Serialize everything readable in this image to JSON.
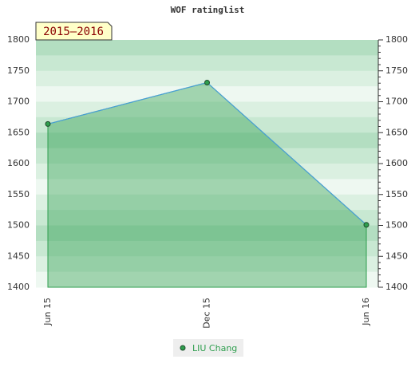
{
  "chart_data": {
    "type": "area",
    "title": "WOF ratinglist",
    "annotation": "2015–2016",
    "categories": [
      "Jun 15",
      "Dec 15",
      "Jun 16"
    ],
    "series": [
      {
        "name": "LIU Chang",
        "color": "#2e9e4e",
        "values": [
          1664,
          1731,
          1501
        ]
      }
    ],
    "ylim": [
      1400,
      1800
    ],
    "yticks": [
      1400,
      1450,
      1500,
      1550,
      1600,
      1650,
      1700,
      1750,
      1800
    ],
    "y2lim": [
      1400,
      1800
    ],
    "y2ticks": [
      1400,
      1450,
      1500,
      1550,
      1600,
      1650,
      1700,
      1750,
      1800
    ]
  }
}
